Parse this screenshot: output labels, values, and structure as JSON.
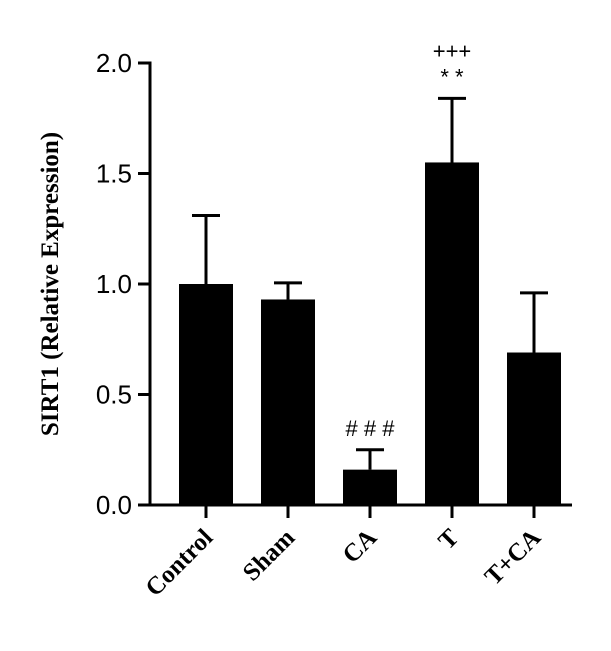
{
  "chart_data": {
    "type": "bar",
    "title": "",
    "xlabel": "",
    "ylabel": "SIRT1 (Relative Expression)",
    "ylim": [
      0,
      2.0
    ],
    "yticks": [
      "0.0",
      "0.5",
      "1.0",
      "1.5",
      "2.0"
    ],
    "categories": [
      "Control",
      "Sham",
      "CA",
      "T",
      "T+CA"
    ],
    "values": [
      1.0,
      0.93,
      0.16,
      1.55,
      0.69
    ],
    "errors": [
      0.31,
      0.075,
      0.09,
      0.29,
      0.27
    ],
    "annotations": [
      {
        "category": "CA",
        "lines": [
          "# # #"
        ]
      },
      {
        "category": "T",
        "lines": [
          "+++",
          "* *"
        ]
      }
    ],
    "bar_color": "#000000",
    "grid": false,
    "legend": "none"
  }
}
